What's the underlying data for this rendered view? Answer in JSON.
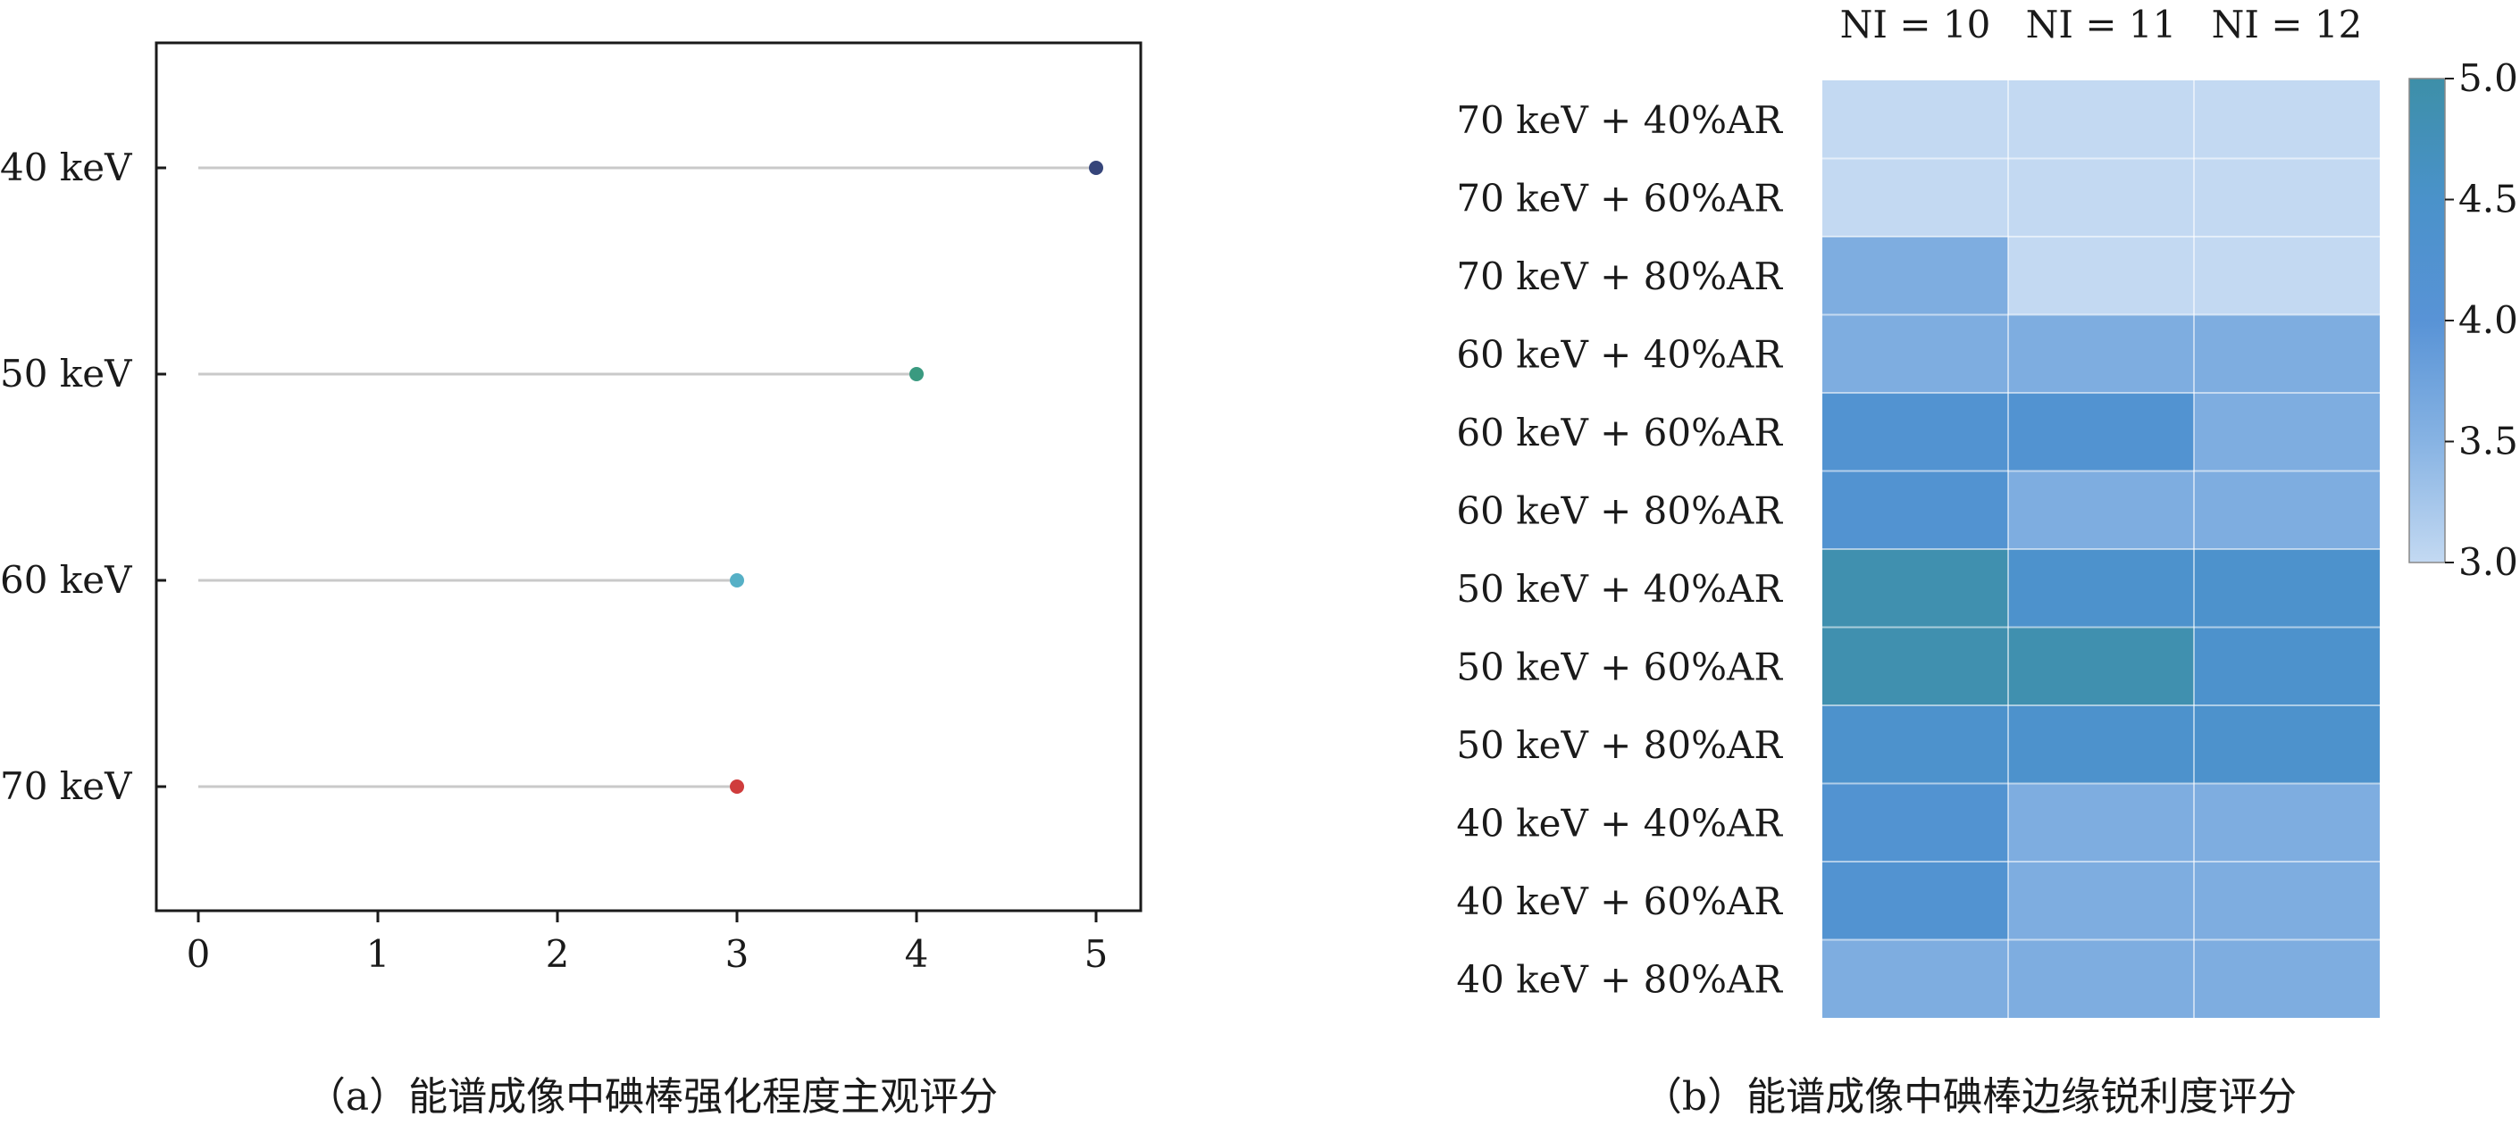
{
  "chart_data": [
    {
      "type": "lollipop",
      "categories": [
        "40 keV",
        "50 keV",
        "60 keV",
        "70 keV"
      ],
      "values": [
        5,
        4,
        3,
        3
      ],
      "point_colors": [
        "#36457a",
        "#3a9a80",
        "#56b0c6",
        "#cf3c3c"
      ],
      "stem_color": "#c9c9c9",
      "xlim": [
        0,
        5
      ],
      "x_ticks": [
        "0",
        "1",
        "2",
        "3",
        "4",
        "5"
      ],
      "grid": false,
      "caption": "（a）能谱成像中碘棒强化程度主观评分"
    },
    {
      "type": "heatmap",
      "columns": [
        "NI = 10",
        "NI = 11",
        "NI = 12"
      ],
      "rows": [
        "70 keV + 40%AR",
        "70 keV + 60%AR",
        "70 keV + 80%AR",
        "60 keV + 40%AR",
        "60 keV + 60%AR",
        "60 keV + 80%AR",
        "50 keV + 40%AR",
        "50 keV + 60%AR",
        "50 keV + 80%AR",
        "40 keV + 40%AR",
        "40 keV + 60%AR",
        "40 keV + 80%AR"
      ],
      "values": [
        [
          3.0,
          3.0,
          3.0
        ],
        [
          3.0,
          3.0,
          3.0
        ],
        [
          3.6,
          3.0,
          3.0
        ],
        [
          3.6,
          3.6,
          3.6
        ],
        [
          4.2,
          4.2,
          3.6
        ],
        [
          4.2,
          3.6,
          3.6
        ],
        [
          4.9,
          4.4,
          4.4
        ],
        [
          4.9,
          4.9,
          4.4
        ],
        [
          4.4,
          4.4,
          4.4
        ],
        [
          4.2,
          3.6,
          3.6
        ],
        [
          4.2,
          3.6,
          3.6
        ],
        [
          3.6,
          3.6,
          3.6
        ]
      ],
      "colorbar": {
        "range": [
          3.0,
          5.0
        ],
        "ticks": [
          "5.0",
          "4.5",
          "4.0",
          "3.5",
          "3.0"
        ],
        "colors": [
          "#c3d9f2",
          "#87b3e3",
          "#5893d6",
          "#4a92ca",
          "#3d8fa8"
        ]
      },
      "caption": "（b）能谱成像中碘棒边缘锐利度评分"
    }
  ]
}
